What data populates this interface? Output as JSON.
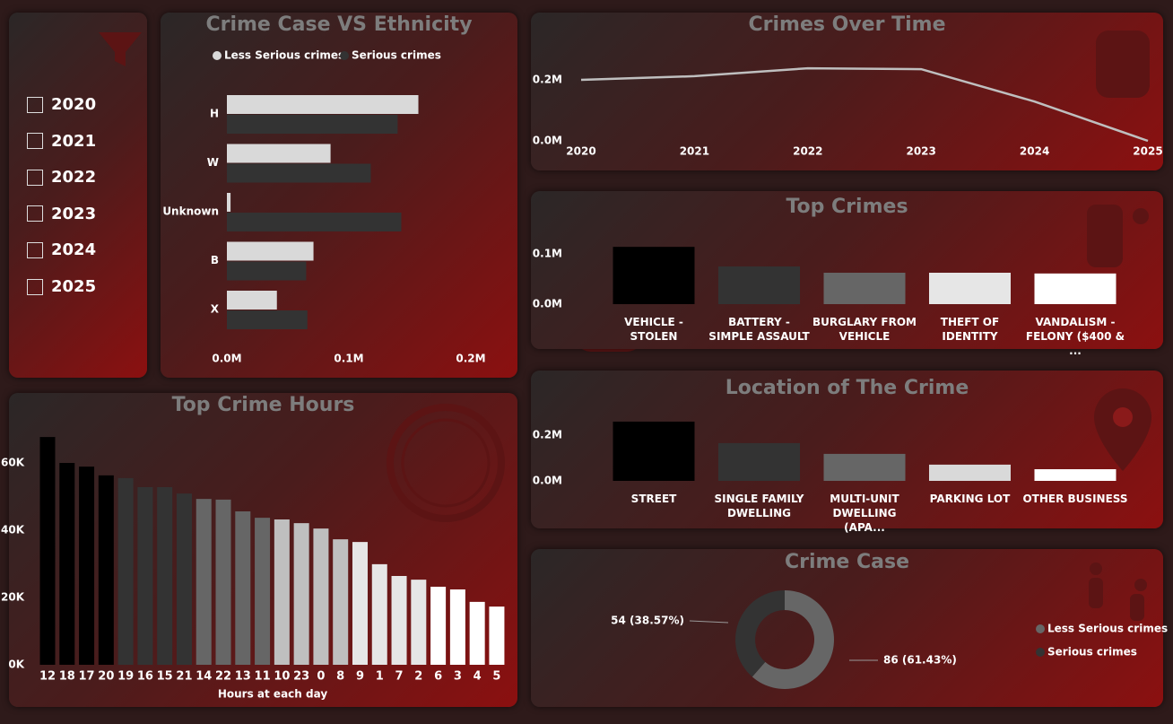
{
  "slicer": {
    "items": [
      "2020",
      "2021",
      "2022",
      "2023",
      "2024",
      "2025"
    ]
  },
  "chart_data": [
    {
      "type": "hbar",
      "title": "Crime Case VS Ethnicity",
      "categories": [
        "H",
        "W",
        "Unknown",
        "B",
        "X"
      ],
      "series": [
        {
          "name": "Less Serious crimes",
          "color": "#d9d9d9",
          "values": [
            157000,
            85000,
            3000,
            71000,
            41000
          ]
        },
        {
          "name": "Serious crimes",
          "color": "#333333",
          "values": [
            140000,
            118000,
            143000,
            65000,
            66000
          ]
        }
      ],
      "xlim": [
        0,
        220000
      ],
      "xticks": [
        {
          "value": 0,
          "label": "0.0M"
        },
        {
          "value": 100000,
          "label": "0.1M"
        },
        {
          "value": 200000,
          "label": "0.2M"
        }
      ]
    },
    {
      "type": "line",
      "title": "Crimes Over Time",
      "categories": [
        "2020",
        "2021",
        "2022",
        "2023",
        "2024",
        "2025"
      ],
      "values": [
        200000,
        212000,
        238000,
        235000,
        129000,
        0
      ],
      "color": "#bfbfbf",
      "ylim": [
        0,
        250000
      ],
      "yticks": [
        {
          "value": 0,
          "label": "0.0M"
        },
        {
          "value": 200000,
          "label": "0.2M"
        }
      ]
    },
    {
      "type": "bar",
      "title": "Top Crimes",
      "categories": [
        "VEHICLE - STOLEN",
        "BATTERY - SIMPLE ASSAULT",
        "BURGLARY FROM VEHICLE",
        "THEFT OF IDENTITY",
        "VANDALISM - FELONY ($400 & ..."
      ],
      "values": [
        114000,
        75000,
        62500,
        62500,
        61000
      ],
      "colors": [
        "#000000",
        "#333333",
        "#666666",
        "#e6e6e6",
        "#ffffff"
      ],
      "ylim": [
        0,
        120000
      ],
      "yticks": [
        {
          "value": 0,
          "label": "0.0M"
        },
        {
          "value": 100000,
          "label": "0.1M"
        }
      ]
    },
    {
      "type": "bar",
      "title": "Location of The Crime",
      "categories": [
        "STREET",
        "SINGLE FAMILY DWELLING",
        "MULTI-UNIT DWELLING (APA...",
        "PARKING LOT",
        "OTHER BUSINESS"
      ],
      "values": [
        259000,
        165000,
        118000,
        71000,
        51000
      ],
      "colors": [
        "#000000",
        "#333333",
        "#666666",
        "#d9d9d9",
        "#ffffff"
      ],
      "ylim": [
        0,
        260000
      ],
      "yticks": [
        {
          "value": 0,
          "label": "0.0M"
        },
        {
          "value": 200000,
          "label": "0.2M"
        }
      ]
    },
    {
      "type": "bar",
      "title": "Top Crime Hours",
      "xlabel": "Hours at each day",
      "categories": [
        "12",
        "18",
        "17",
        "20",
        "19",
        "16",
        "15",
        "21",
        "14",
        "22",
        "13",
        "11",
        "10",
        "23",
        "0",
        "8",
        "9",
        "1",
        "7",
        "2",
        "6",
        "3",
        "4",
        "5"
      ],
      "values": [
        67700,
        60000,
        58900,
        56300,
        55500,
        52800,
        52800,
        50900,
        49300,
        49100,
        45600,
        43700,
        43200,
        42100,
        40500,
        37300,
        36500,
        29900,
        26400,
        25300,
        23200,
        22400,
        18700,
        17300
      ],
      "colors": [
        "#000000",
        "#000000",
        "#000000",
        "#000000",
        "#333333",
        "#333333",
        "#333333",
        "#333333",
        "#666666",
        "#666666",
        "#666666",
        "#666666",
        "#bfbfbf",
        "#bfbfbf",
        "#bfbfbf",
        "#bfbfbf",
        "#e6e6e6",
        "#e6e6e6",
        "#e6e6e6",
        "#e6e6e6",
        "#ffffff",
        "#ffffff",
        "#ffffff",
        "#ffffff"
      ],
      "ylim": [
        0,
        70000
      ],
      "yticks": [
        {
          "value": 0,
          "label": "0K"
        },
        {
          "value": 20000,
          "label": "20K"
        },
        {
          "value": 40000,
          "label": "40K"
        },
        {
          "value": 60000,
          "label": "60K"
        }
      ]
    },
    {
      "type": "donut",
      "title": "Crime Case",
      "categories": [
        "Less Serious crimes",
        "Serious crimes"
      ],
      "values": [
        86,
        54
      ],
      "value_labels": [
        "86 (61.43%)",
        "54 (38.57%)"
      ],
      "colors": [
        "#666666",
        "#333333"
      ]
    }
  ]
}
